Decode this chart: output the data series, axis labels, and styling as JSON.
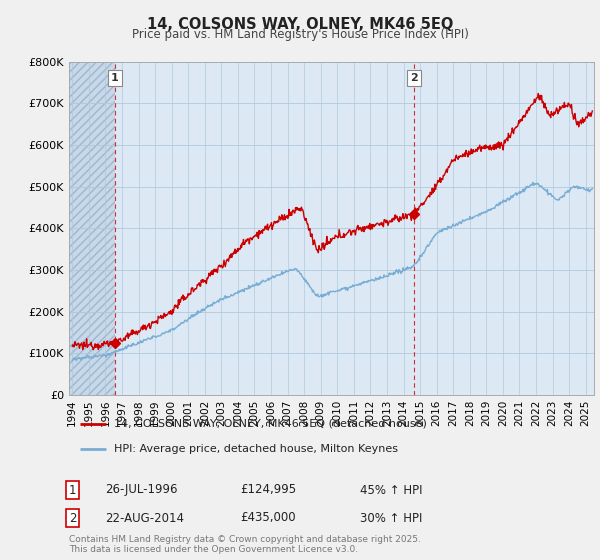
{
  "title": "14, COLSONS WAY, OLNEY, MK46 5EQ",
  "subtitle": "Price paid vs. HM Land Registry's House Price Index (HPI)",
  "xlim": [
    1993.8,
    2025.5
  ],
  "ylim": [
    0,
    800000
  ],
  "yticks": [
    0,
    100000,
    200000,
    300000,
    400000,
    500000,
    600000,
    700000,
    800000
  ],
  "ytick_labels": [
    "£0",
    "£100K",
    "£200K",
    "£300K",
    "£400K",
    "£500K",
    "£600K",
    "£700K",
    "£800K"
  ],
  "house_color": "#cc0000",
  "hpi_color": "#7aadd4",
  "sale1_x": 1996.57,
  "sale1_y": 124995,
  "sale2_x": 2014.64,
  "sale2_y": 435000,
  "legend_house": "14, COLSONS WAY, OLNEY, MK46 5EQ (detached house)",
  "legend_hpi": "HPI: Average price, detached house, Milton Keynes",
  "label1_date": "26-JUL-1996",
  "label1_price": "£124,995",
  "label1_hpi": "45% ↑ HPI",
  "label2_date": "22-AUG-2014",
  "label2_price": "£435,000",
  "label2_hpi": "30% ↑ HPI",
  "footer": "Contains HM Land Registry data © Crown copyright and database right 2025.\nThis data is licensed under the Open Government Licence v3.0.",
  "bg_color": "#f0f0f0",
  "plot_bg": "#dce9f5",
  "hatch_color": "#c8d8e8"
}
